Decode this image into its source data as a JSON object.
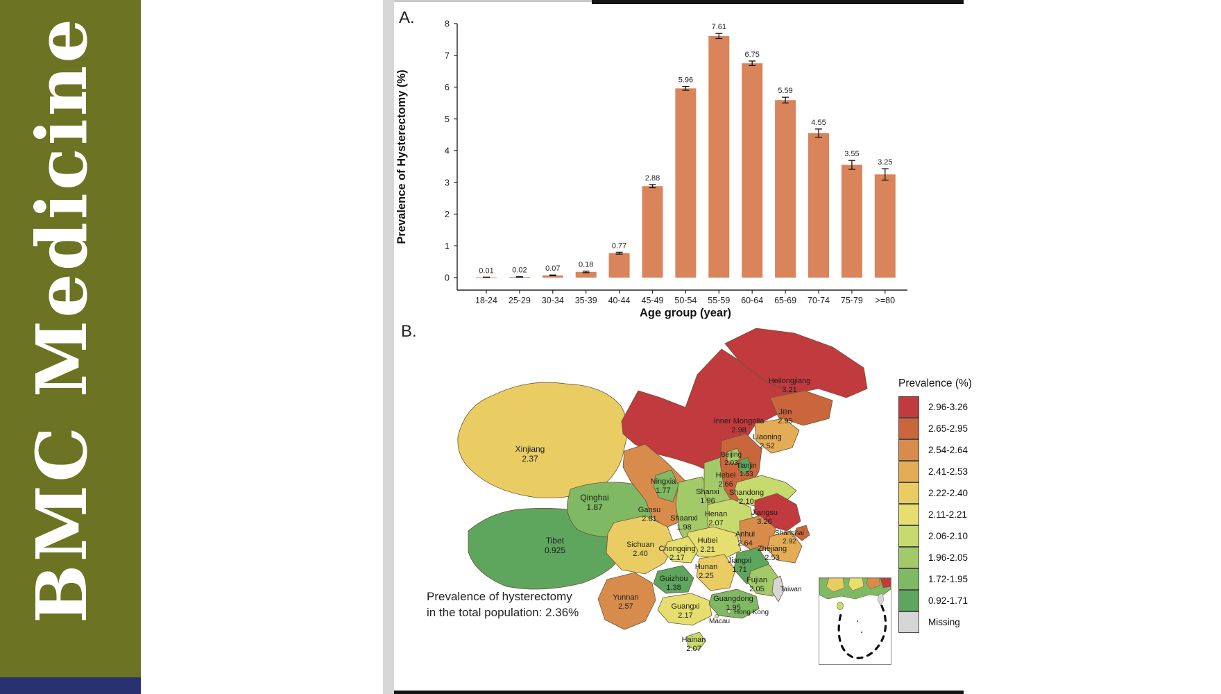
{
  "journal_spine": {
    "title": "BMC Medicine"
  },
  "figure": {
    "panel_a_label": "A.",
    "panel_b_label": "B.",
    "annotation_line1": "Prevalence of hysterectomy",
    "annotation_line2": "in the total population: 2.36%"
  },
  "chart_data": [
    {
      "type": "bar",
      "title": "",
      "xlabel": "Age group (year)",
      "ylabel": "Prevalence of Hysterectomy (%)",
      "categories": [
        "18-24",
        "25-29",
        "30-34",
        "35-39",
        "40-44",
        "45-49",
        "50-54",
        "55-59",
        "60-64",
        "65-69",
        "70-74",
        "75-79",
        ">=80"
      ],
      "values": [
        0.01,
        0.02,
        0.07,
        0.18,
        0.77,
        2.88,
        5.96,
        7.61,
        6.75,
        5.59,
        4.55,
        3.55,
        3.25
      ],
      "errors": [
        0.005,
        0.008,
        0.012,
        0.025,
        0.03,
        0.05,
        0.06,
        0.08,
        0.07,
        0.09,
        0.13,
        0.14,
        0.18
      ],
      "value_labels": [
        "0.01",
        "0.02",
        "0.07",
        "0.18",
        "0.77",
        "2.88",
        "5.96",
        "7.61",
        "6.75",
        "5.59",
        "4.55",
        "3.55",
        "3.25"
      ],
      "ylim": [
        0,
        8
      ],
      "yticks": [
        0,
        1,
        2,
        3,
        4,
        5,
        6,
        7,
        8
      ],
      "bar_color": "#D9845A",
      "grid": false,
      "legend_position": "none"
    },
    {
      "type": "choropleth",
      "region": "China",
      "legend_title": "Prevalence (%)",
      "legend_classes": [
        {
          "range": "2.96-3.26",
          "color": "#C13A3E"
        },
        {
          "range": "2.65-2.95",
          "color": "#CA663C"
        },
        {
          "range": "2.54-2.64",
          "color": "#D88C4C"
        },
        {
          "range": "2.41-2.53",
          "color": "#E3AC55"
        },
        {
          "range": "2.22-2.40",
          "color": "#E9CD63"
        },
        {
          "range": "2.11-2.21",
          "color": "#E6DF6F"
        },
        {
          "range": "2.06-2.10",
          "color": "#C7DA6D"
        },
        {
          "range": "1.96-2.05",
          "color": "#A3CA68"
        },
        {
          "range": "1.72-1.95",
          "color": "#7FB963"
        },
        {
          "range": "0.92-1.71",
          "color": "#5EA65D"
        },
        {
          "range": "Missing",
          "color": "#D6D6D6"
        }
      ],
      "annotation": "Prevalence of hysterectomy in the total population: 2.36%",
      "provinces": [
        {
          "id": "heilongjiang",
          "name": "Heilongjiang",
          "value": "3.21",
          "class": 0
        },
        {
          "id": "inner_mongolia",
          "name": "Inner Mongolia",
          "value": "2.98",
          "class": 0
        },
        {
          "id": "jilin",
          "name": "Jilin",
          "value": "2.95",
          "class": 1
        },
        {
          "id": "liaoning",
          "name": "Liaoning",
          "value": "2.52",
          "class": 3
        },
        {
          "id": "xinjiang",
          "name": "Xinjiang",
          "value": "2.37",
          "class": 4
        },
        {
          "id": "tibet",
          "name": "Tibet",
          "value": "0.925",
          "class": 9
        },
        {
          "id": "qinghai",
          "name": "Qinghai",
          "value": "1.87",
          "class": 8
        },
        {
          "id": "gansu",
          "name": "Gansu",
          "value": "2.61",
          "class": 2
        },
        {
          "id": "ningxia",
          "name": "Ningxia",
          "value": "1.77",
          "class": 8
        },
        {
          "id": "shaanxi",
          "name": "Shaanxi",
          "value": "1.98",
          "class": 7
        },
        {
          "id": "shanxi",
          "name": "Shanxi",
          "value": "1.96",
          "class": 7
        },
        {
          "id": "hebei",
          "name": "Hebei",
          "value": "2.66",
          "class": 1
        },
        {
          "id": "beijing",
          "name": "Beijing",
          "value": "2.03",
          "class": 7
        },
        {
          "id": "tianjin",
          "name": "Tianjin",
          "value": "1.53",
          "class": 9
        },
        {
          "id": "shandong",
          "name": "Shandong",
          "value": "2.10",
          "class": 6
        },
        {
          "id": "henan",
          "name": "Henan",
          "value": "2.07",
          "class": 6
        },
        {
          "id": "jiangsu",
          "name": "Jiangsu",
          "value": "3.26",
          "class": 0
        },
        {
          "id": "shanghai",
          "name": "Shanghai",
          "value": "2.92",
          "class": 1
        },
        {
          "id": "anhui",
          "name": "Anhui",
          "value": "2.64",
          "class": 2
        },
        {
          "id": "hubei",
          "name": "Hubei",
          "value": "2.21",
          "class": 5
        },
        {
          "id": "zhejiang",
          "name": "Zhejiang",
          "value": "2.53",
          "class": 3
        },
        {
          "id": "sichuan",
          "name": "Sichuan",
          "value": "2.40",
          "class": 4
        },
        {
          "id": "chongqing",
          "name": "Chongqing",
          "value": "2.17",
          "class": 5
        },
        {
          "id": "hunan",
          "name": "Hunan",
          "value": "2.25",
          "class": 4
        },
        {
          "id": "jiangxi",
          "name": "Jiangxi",
          "value": "1.71",
          "class": 9
        },
        {
          "id": "guizhou",
          "name": "Guizhou",
          "value": "1.38",
          "class": 9
        },
        {
          "id": "yunnan",
          "name": "Yunnan",
          "value": "2.57",
          "class": 2
        },
        {
          "id": "guangxi",
          "name": "Guangxi",
          "value": "2.17",
          "class": 5
        },
        {
          "id": "guangdong",
          "name": "Guangdong",
          "value": "1.95",
          "class": 8
        },
        {
          "id": "fujian",
          "name": "Fujian",
          "value": "2.05",
          "class": 7
        },
        {
          "id": "hainan",
          "name": "Hainan",
          "value": "2.07",
          "class": 6
        },
        {
          "id": "taiwan",
          "name": "Taiwan",
          "value": "",
          "class": 10
        },
        {
          "id": "hong_kong",
          "name": "Hong Kong",
          "value": "",
          "class": 10
        },
        {
          "id": "macau",
          "name": "Macau",
          "value": "",
          "class": 10
        }
      ]
    }
  ]
}
